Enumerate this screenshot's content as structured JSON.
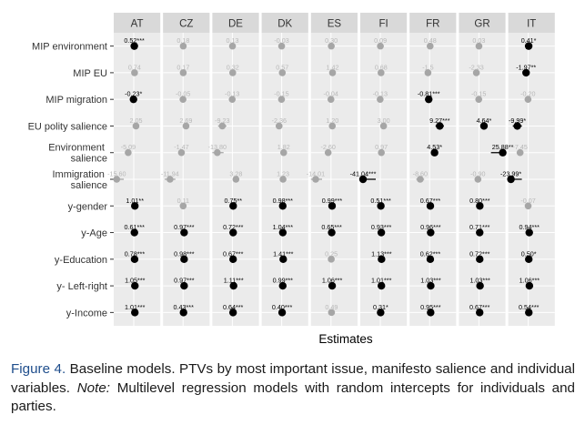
{
  "chart_data": {
    "type": "scatter",
    "xlabel": "Estimates",
    "panels": [
      "AT",
      "CZ",
      "DE",
      "DK",
      "ES",
      "FI",
      "FR",
      "GR",
      "IT"
    ],
    "rows": [
      "MIP environment",
      "MIP EU",
      "MIP migration",
      "EU polity salience",
      "Environment salience",
      "Immigration salience",
      "y-gender",
      "y-Age",
      "y-Education",
      "y- Left-right",
      "y-Income"
    ],
    "points": [
      [
        {
          "x": 0.52,
          "label": "0.52***",
          "sig": true
        },
        {
          "x": 0.18,
          "label": "0.18",
          "sig": false
        },
        {
          "x": 0.13,
          "label": "0.13",
          "sig": false
        },
        {
          "x": -0.03,
          "label": "-0.03",
          "sig": false
        },
        {
          "x": 0.3,
          "label": "0.30",
          "sig": false
        },
        {
          "x": 0.09,
          "label": "0.09",
          "sig": false
        },
        {
          "x": 0.48,
          "label": "0.48",
          "sig": false
        },
        {
          "x": 0.03,
          "label": "0.03",
          "sig": false
        },
        {
          "x": 0.41,
          "label": "0.41*",
          "sig": true
        }
      ],
      [
        {
          "x": 0.74,
          "label": "0.74",
          "sig": false
        },
        {
          "x": 0.17,
          "label": "0.17",
          "sig": false
        },
        {
          "x": 0.32,
          "label": "0.32",
          "sig": false
        },
        {
          "x": 0.57,
          "label": "0.57",
          "sig": false
        },
        {
          "x": 1.42,
          "label": "1.42",
          "sig": false
        },
        {
          "x": 0.68,
          "label": "0.68",
          "sig": false
        },
        {
          "x": -1.5,
          "label": "-1.5",
          "sig": false
        },
        {
          "x": -2.33,
          "label": "-2.33",
          "sig": false
        },
        {
          "x": -1.97,
          "label": "-1.97**",
          "sig": true
        }
      ],
      [
        {
          "x": -0.23,
          "label": "-0.23*",
          "sig": true
        },
        {
          "x": -0.05,
          "label": "-0.05",
          "sig": false
        },
        {
          "x": -0.13,
          "label": "-0.13",
          "sig": false
        },
        {
          "x": -0.15,
          "label": "-0.15",
          "sig": false
        },
        {
          "x": -0.04,
          "label": "-0.04",
          "sig": false
        },
        {
          "x": -0.13,
          "label": "-0.13",
          "sig": false
        },
        {
          "x": -0.81,
          "label": "-0.81***",
          "sig": true
        },
        {
          "x": -0.15,
          "label": "-0.15",
          "sig": false
        },
        {
          "x": -0.2,
          "label": "-0.20",
          "sig": false
        }
      ],
      [
        {
          "x": 2.05,
          "label": "2.05",
          "sig": false
        },
        {
          "x": 2.69,
          "label": "2.69",
          "sig": false
        },
        {
          "x": -9.23,
          "label": "-9.23",
          "sig": false
        },
        {
          "x": -2.36,
          "label": "-2.36",
          "sig": false
        },
        {
          "x": 1.2,
          "label": "1.20",
          "sig": false
        },
        {
          "x": 3.0,
          "label": "3.00",
          "sig": false
        },
        {
          "x": 9.27,
          "label": "9.27***",
          "sig": true
        },
        {
          "x": 4.64,
          "label": "4.64*",
          "sig": true
        },
        {
          "x": -9.99,
          "label": "-9.99*",
          "sig": true
        }
      ],
      [
        {
          "x": -5.09,
          "label": "-5.09",
          "sig": false
        },
        {
          "x": -1.47,
          "label": "-1.47",
          "sig": false
        },
        {
          "x": -13.8,
          "label": "-13.80",
          "sig": false
        },
        {
          "x": 1.82,
          "label": "1.82",
          "sig": false
        },
        {
          "x": -2.6,
          "label": "-2.60",
          "sig": false
        },
        {
          "x": 0.97,
          "label": "0.97",
          "sig": false
        },
        {
          "x": 4.53,
          "label": "4.53*",
          "sig": true
        },
        {
          "x": 25.88,
          "label": "25.88**",
          "sig": true
        },
        {
          "x": -7.45,
          "label": "-7.45",
          "sig": false
        }
      ],
      [
        {
          "x": -15.6,
          "label": "-15.60",
          "sig": false
        },
        {
          "x": -11.94,
          "label": "-11.94",
          "sig": false
        },
        {
          "x": 3.28,
          "label": "3.28",
          "sig": false
        },
        {
          "x": 1.23,
          "label": "1.23",
          "sig": false
        },
        {
          "x": -14.01,
          "label": "-14.01",
          "sig": false
        },
        {
          "x": -41.04,
          "label": "-41.04***",
          "sig": true
        },
        {
          "x": -8.6,
          "label": "-8.60",
          "sig": false
        },
        {
          "x": -0.9,
          "label": "-0.90",
          "sig": false
        },
        {
          "x": -23.99,
          "label": "-23.99*",
          "sig": true
        }
      ],
      [
        {
          "x": 1.01,
          "label": "1.01**",
          "sig": true
        },
        {
          "x": 0.11,
          "label": "0.11",
          "sig": false
        },
        {
          "x": 0.75,
          "label": "0.75**",
          "sig": true
        },
        {
          "x": 0.98,
          "label": "0.98***",
          "sig": true
        },
        {
          "x": 0.99,
          "label": "0.99***",
          "sig": true
        },
        {
          "x": 0.51,
          "label": "0.51***",
          "sig": true
        },
        {
          "x": 0.67,
          "label": "0.67***",
          "sig": true
        },
        {
          "x": 0.8,
          "label": "0.80***",
          "sig": true
        },
        {
          "x": -0.07,
          "label": "-0.07",
          "sig": false
        }
      ],
      [
        {
          "x": 0.61,
          "label": "0.61***",
          "sig": true
        },
        {
          "x": 0.97,
          "label": "0.97***",
          "sig": true
        },
        {
          "x": 0.72,
          "label": "0.72***",
          "sig": true
        },
        {
          "x": 1.04,
          "label": "1.04***",
          "sig": true
        },
        {
          "x": 0.65,
          "label": "0.65***",
          "sig": true
        },
        {
          "x": 0.93,
          "label": "0.93***",
          "sig": true
        },
        {
          "x": 0.96,
          "label": "0.96***",
          "sig": true
        },
        {
          "x": 0.71,
          "label": "0.71***",
          "sig": true
        },
        {
          "x": 0.94,
          "label": "0.94***",
          "sig": true
        }
      ],
      [
        {
          "x": 0.78,
          "label": "0.78***",
          "sig": true
        },
        {
          "x": 0.98,
          "label": "0.98***",
          "sig": true
        },
        {
          "x": 0.67,
          "label": "0.67***",
          "sig": true
        },
        {
          "x": 1.41,
          "label": "1.41***",
          "sig": true
        },
        {
          "x": 0.25,
          "label": "0.25",
          "sig": false
        },
        {
          "x": 1.13,
          "label": "1.13***",
          "sig": true
        },
        {
          "x": 0.62,
          "label": "0.62***",
          "sig": true
        },
        {
          "x": 0.72,
          "label": "0.72***",
          "sig": true
        },
        {
          "x": 0.5,
          "label": "0.50*",
          "sig": true
        }
      ],
      [
        {
          "x": 1.05,
          "label": "1.05***",
          "sig": true
        },
        {
          "x": 0.97,
          "label": "0.97***",
          "sig": true
        },
        {
          "x": 1.11,
          "label": "1.11***",
          "sig": true
        },
        {
          "x": 0.99,
          "label": "0.99***",
          "sig": true
        },
        {
          "x": 1.06,
          "label": "1.06***",
          "sig": true
        },
        {
          "x": 1.01,
          "label": "1.01***",
          "sig": true
        },
        {
          "x": 1.03,
          "label": "1.03***",
          "sig": true
        },
        {
          "x": 1.03,
          "label": "1.03***",
          "sig": true
        },
        {
          "x": 1.06,
          "label": "1.06***",
          "sig": true
        }
      ],
      [
        {
          "x": 1.01,
          "label": "1.01***",
          "sig": true
        },
        {
          "x": 0.43,
          "label": "0.43***",
          "sig": true
        },
        {
          "x": 0.64,
          "label": "0.64***",
          "sig": true
        },
        {
          "x": 0.4,
          "label": "0.40***",
          "sig": true
        },
        {
          "x": 0.49,
          "label": "0.49",
          "sig": false
        },
        {
          "x": 0.31,
          "label": "0.31*",
          "sig": true
        },
        {
          "x": 0.95,
          "label": "0.95***",
          "sig": true
        },
        {
          "x": 0.67,
          "label": "0.67***",
          "sig": true
        },
        {
          "x": 0.54,
          "label": "0.54***",
          "sig": true
        }
      ]
    ],
    "colors": {
      "significant": "#000000",
      "non_significant": "#a6a6a6",
      "panel_bg": "#ebebeb",
      "strip_bg": "#d9d9d9"
    },
    "grid": true,
    "legend": "none"
  },
  "caption": {
    "figure_label": "Figure 4.",
    "text_a": " Baseline models. PTVs by most important issue, manifesto salience and individual variables. ",
    "note_label": "Note:",
    "text_b": " Multilevel regression models with random intercepts for individuals and parties."
  }
}
